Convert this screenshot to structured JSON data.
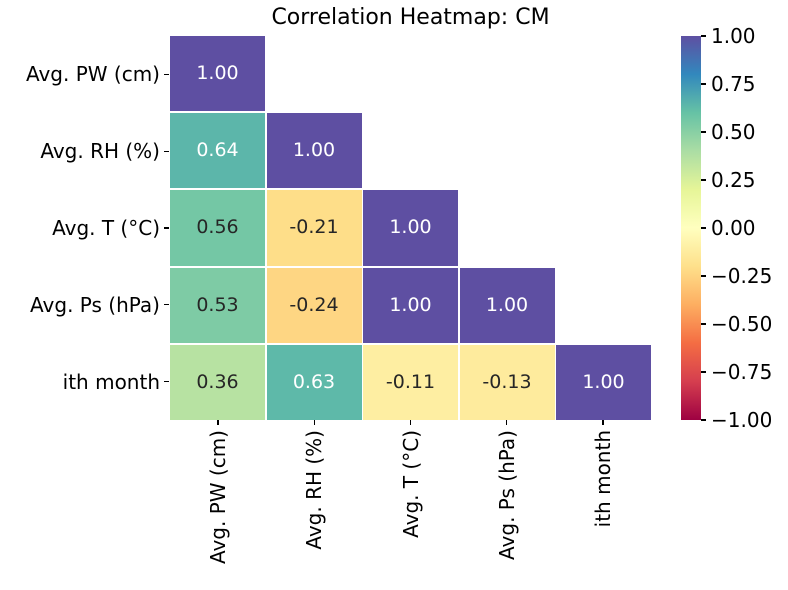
{
  "title": "Correlation Heatmap: CM",
  "chart_data": {
    "type": "heatmap",
    "subtype": "correlation-matrix-lower-triangle",
    "title": "Correlation Heatmap: CM",
    "categories": [
      "Avg. PW (cm)",
      "Avg. RH (%)",
      "Avg. T (°C)",
      "Avg. Ps (hPa)",
      "ith month"
    ],
    "matrix": [
      [
        1.0,
        null,
        null,
        null,
        null
      ],
      [
        0.64,
        1.0,
        null,
        null,
        null
      ],
      [
        0.56,
        -0.21,
        1.0,
        null,
        null
      ],
      [
        0.53,
        -0.24,
        1.0,
        1.0,
        null
      ],
      [
        0.36,
        0.63,
        -0.11,
        -0.13,
        1.0
      ]
    ],
    "annotation_format": ".2f",
    "vmin": -1.0,
    "vmax": 1.0,
    "grid_on": false,
    "colorbar": {
      "position": "right",
      "tick_labels": [
        "1.00",
        "0.75",
        "0.50",
        "0.25",
        "0.00",
        "−0.25",
        "−0.50",
        "−0.75",
        "−1.00"
      ],
      "tick_values": [
        1.0,
        0.75,
        0.5,
        0.25,
        0.0,
        -0.25,
        -0.5,
        -0.75,
        -1.0
      ]
    },
    "colormap": {
      "name": "Spectral",
      "anchors_low_to_high": [
        "#9e0142",
        "#d53e4f",
        "#f46d43",
        "#fdae61",
        "#fee08b",
        "#ffffbf",
        "#e6f598",
        "#abdda4",
        "#66c2a5",
        "#3288bd",
        "#5e4fa2"
      ]
    },
    "colors": {
      "background": "#ffffff",
      "cell_gap_line": "#ffffff",
      "annotation_dark": "#262626",
      "annotation_light": "#ffffff",
      "tick_and_label": "#000000"
    }
  }
}
